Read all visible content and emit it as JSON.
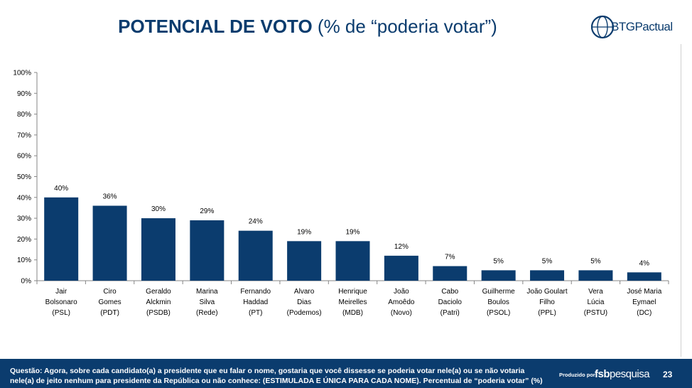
{
  "header": {
    "title_bold": "POTENCIAL DE VOTO",
    "title_rest": " (% de “poderia votar”)",
    "logo_text": "BTGPactual"
  },
  "chart_data": {
    "type": "bar",
    "title": "POTENCIAL DE VOTO (% de “poderia votar”)",
    "ylabel": "",
    "xlabel": "",
    "ylim": [
      0,
      100
    ],
    "yticks": [
      "0%",
      "10%",
      "20%",
      "30%",
      "40%",
      "50%",
      "60%",
      "70%",
      "80%",
      "90%",
      "100%"
    ],
    "categories": [
      [
        "Jair",
        "Bolsonaro",
        "(PSL)"
      ],
      [
        "Ciro",
        "Gomes",
        "(PDT)"
      ],
      [
        "Geraldo",
        "Alckmin",
        "(PSDB)"
      ],
      [
        "Marina",
        "Silva",
        "(Rede)"
      ],
      [
        "Fernando",
        "Haddad",
        "(PT)"
      ],
      [
        "Alvaro",
        "Dias",
        "(Podemos)"
      ],
      [
        "Henrique",
        "Meirelles",
        "(MDB)"
      ],
      [
        "João",
        "Amoêdo",
        "(Novo)"
      ],
      [
        "Cabo",
        "Daciolo",
        "(Patri)"
      ],
      [
        "Guilherme",
        "Boulos",
        "(PSOL)"
      ],
      [
        "João Goulart",
        "Filho",
        "(PPL)"
      ],
      [
        "Vera",
        "Lúcia",
        "(PSTU)"
      ],
      [
        "José Maria",
        "Eymael",
        "(DC)"
      ]
    ],
    "values": [
      40,
      36,
      30,
      29,
      24,
      19,
      19,
      12,
      7,
      5,
      5,
      5,
      4
    ],
    "labels": [
      "40%",
      "36%",
      "30%",
      "29%",
      "24%",
      "19%",
      "19%",
      "12%",
      "7%",
      "5%",
      "5%",
      "5%",
      "4%"
    ],
    "bar_color": "#0b3c6e",
    "grid": false
  },
  "footer": {
    "question": "Questão:  Agora, sobre cada candidato(a) a presidente que eu falar o nome, gostaria que você dissesse se poderia votar nele(a) ou se não votaria nele(a) de jeito nenhum para presidente da República ou não conhece:  (ESTIMULADA E ÚNICA PARA CADA NOME). Percentual de “poderia votar” (%)",
    "produced_by": "Produzido por",
    "brand_a": "fsb",
    "brand_b": "pesquisa",
    "page_number": "23"
  }
}
